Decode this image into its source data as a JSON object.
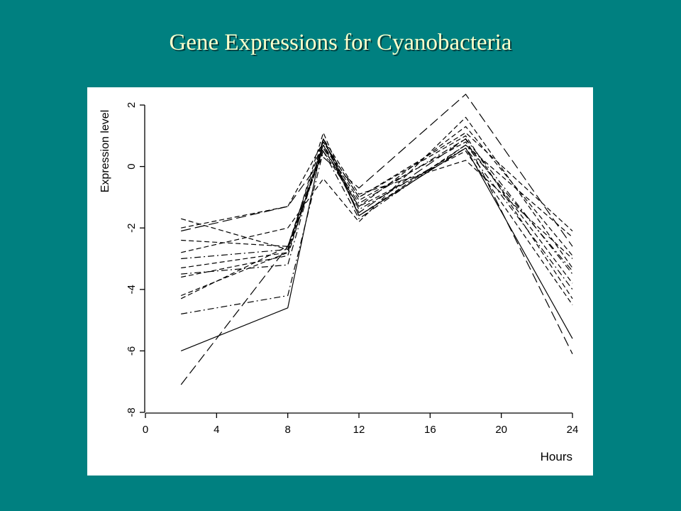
{
  "slide": {
    "title": "Gene Expressions  for Cyanobacteria",
    "background": "#008080",
    "title_color": "#ffffcc"
  },
  "chart_data": {
    "type": "line",
    "title": "",
    "xlabel": "Hours",
    "ylabel": "Expression level",
    "xlim": [
      0,
      24
    ],
    "ylim": [
      -8,
      2
    ],
    "xticks": [
      0,
      4,
      8,
      12,
      16,
      20,
      24
    ],
    "yticks": [
      -8,
      -6,
      -4,
      -2,
      0,
      2
    ],
    "grid": false,
    "legend": "none",
    "x": [
      2,
      8,
      10,
      12,
      18,
      24
    ],
    "series": [
      {
        "values": [
          -6.0,
          -4.6,
          0.9,
          -1.6,
          0.6,
          -5.6
        ],
        "style": "solid"
      },
      {
        "values": [
          -7.1,
          -2.6,
          0.7,
          -1.5,
          0.9,
          -6.1
        ],
        "style": "longdash"
      },
      {
        "values": [
          -1.7,
          -2.7,
          1.1,
          -1.6,
          0.7,
          -2.3
        ],
        "style": "dash"
      },
      {
        "values": [
          -2.0,
          -1.3,
          0.8,
          -1.0,
          1.1,
          -2.1
        ],
        "style": "dash"
      },
      {
        "values": [
          -2.1,
          -1.3,
          0.3,
          -0.7,
          2.35,
          -2.6
        ],
        "style": "longdash"
      },
      {
        "values": [
          -2.4,
          -2.6,
          0.5,
          -1.3,
          1.3,
          -2.9
        ],
        "style": "dash"
      },
      {
        "values": [
          -2.8,
          -2.0,
          -0.4,
          -1.8,
          1.6,
          -3.3
        ],
        "style": "dash"
      },
      {
        "values": [
          -3.0,
          -2.7,
          0.6,
          -1.2,
          0.9,
          -3.5
        ],
        "style": "dashdot"
      },
      {
        "values": [
          -3.3,
          -2.8,
          0.7,
          -1.1,
          0.8,
          -3.8
        ],
        "style": "dash"
      },
      {
        "values": [
          -3.5,
          -3.2,
          0.9,
          -1.4,
          0.6,
          -4.0
        ],
        "style": "dashdot"
      },
      {
        "values": [
          -3.6,
          -2.9,
          0.8,
          -1.0,
          1.0,
          -4.3
        ],
        "style": "dash"
      },
      {
        "values": [
          -4.2,
          -2.8,
          0.6,
          -1.3,
          0.5,
          -4.5
        ],
        "style": "dash"
      },
      {
        "values": [
          -4.3,
          -2.6,
          0.9,
          -0.9,
          0.2,
          -3.0
        ],
        "style": "dash"
      },
      {
        "values": [
          -4.8,
          -4.2,
          0.5,
          -1.7,
          0.7,
          -3.4
        ],
        "style": "dashdot"
      }
    ]
  }
}
